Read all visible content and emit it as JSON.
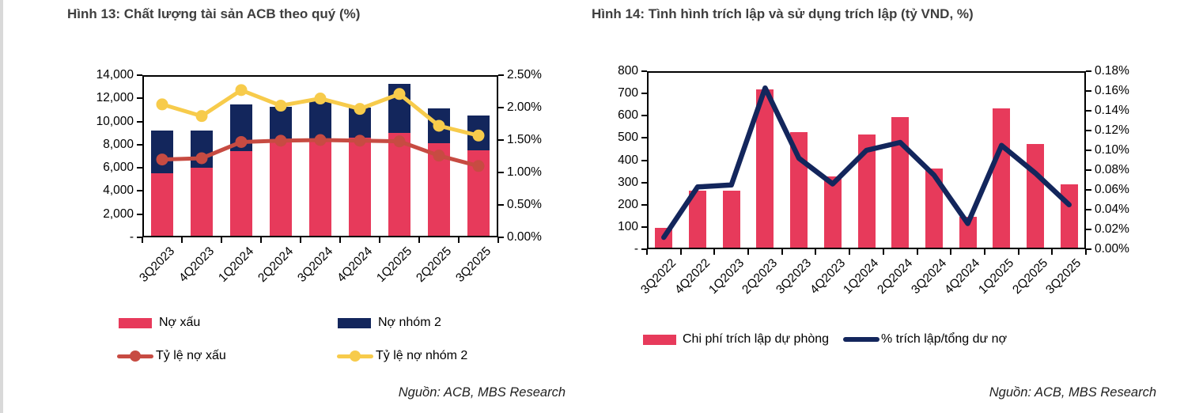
{
  "page": {
    "source_left": "Nguồn: ACB, MBS Research",
    "source_right": "Nguồn: ACB, MBS Research"
  },
  "chart_data": [
    {
      "type": "bar",
      "subtype": "stacked-bars-with-lines",
      "title": "Hình 13: Chất lượng tài sản ACB theo quý (%)",
      "categories": [
        "3Q2023",
        "4Q2023",
        "1Q2024",
        "2Q2024",
        "3Q2024",
        "4Q2024",
        "1Q2025",
        "2Q2025",
        "3Q2025"
      ],
      "series": [
        {
          "name": "Nợ xấu",
          "kind": "bar",
          "stack": true,
          "axis": "left",
          "color": "#e73a5b",
          "values": [
            5400,
            5900,
            7300,
            8150,
            8400,
            8500,
            8850,
            8000,
            7350
          ]
        },
        {
          "name": "Nợ nhóm 2",
          "kind": "bar",
          "stack": true,
          "axis": "left",
          "color": "#13265c",
          "values": [
            3670,
            3170,
            4040,
            2950,
            3200,
            2550,
            4280,
            3000,
            3050
          ]
        },
        {
          "name": "Tỷ lệ nợ xấu",
          "kind": "line",
          "axis": "right",
          "color": "#c74b42",
          "marker": true,
          "values": [
            1.2,
            1.22,
            1.47,
            1.49,
            1.5,
            1.49,
            1.48,
            1.26,
            1.1
          ]
        },
        {
          "name": "Tỷ lệ nợ nhóm 2",
          "kind": "line",
          "axis": "right",
          "color": "#f7cb4b",
          "marker": true,
          "values": [
            2.05,
            1.87,
            2.27,
            2.03,
            2.14,
            1.98,
            2.21,
            1.72,
            1.57
          ]
        }
      ],
      "left_axis": {
        "min": 0,
        "max": 14000,
        "step": 2000,
        "labels": [
          "14,000",
          "12,000",
          "10,000",
          "8,000",
          "6,000",
          "4,000",
          "2,000",
          "-"
        ]
      },
      "right_axis": {
        "min": 0,
        "max": 2.5,
        "step": 0.5,
        "labels": [
          "2.50%",
          "2.00%",
          "1.50%",
          "1.00%",
          "0.50%",
          "0.00%"
        ]
      },
      "grid": false,
      "legend_position": "bottom"
    },
    {
      "type": "bar",
      "subtype": "bars-with-line",
      "title": "Hình 14: Tình hình trích lập và sử dụng trích lập (tỷ VND, %)",
      "categories": [
        "3Q2022",
        "4Q2022",
        "1Q2023",
        "2Q2023",
        "3Q2023",
        "4Q2023",
        "1Q2024",
        "2Q2024",
        "3Q2024",
        "4Q2024",
        "1Q2025",
        "2Q2025",
        "3Q2025"
      ],
      "series": [
        {
          "name": "Chi phí trích lập dự phòng",
          "kind": "bar",
          "stack": false,
          "axis": "left",
          "color": "#e73a5b",
          "values": [
            90,
            255,
            255,
            710,
            520,
            320,
            510,
            585,
            355,
            140,
            625,
            465,
            285
          ]
        },
        {
          "name": "% trích lập/tổng dư nợ",
          "kind": "line",
          "axis": "right",
          "color": "#13265c",
          "marker": false,
          "values": [
            0.012,
            0.063,
            0.065,
            0.163,
            0.092,
            0.066,
            0.1,
            0.108,
            0.075,
            0.026,
            0.105,
            0.077,
            0.045
          ]
        }
      ],
      "left_axis": {
        "min": 0,
        "max": 800,
        "step": 100,
        "labels": [
          "800",
          "700",
          "600",
          "500",
          "400",
          "300",
          "200",
          "100",
          "-"
        ]
      },
      "right_axis": {
        "min": 0,
        "max": 0.18,
        "step": 0.02,
        "labels": [
          "0.18%",
          "0.16%",
          "0.14%",
          "0.12%",
          "0.10%",
          "0.08%",
          "0.06%",
          "0.04%",
          "0.02%",
          "0.00%"
        ]
      },
      "grid": false,
      "legend_position": "bottom"
    }
  ]
}
